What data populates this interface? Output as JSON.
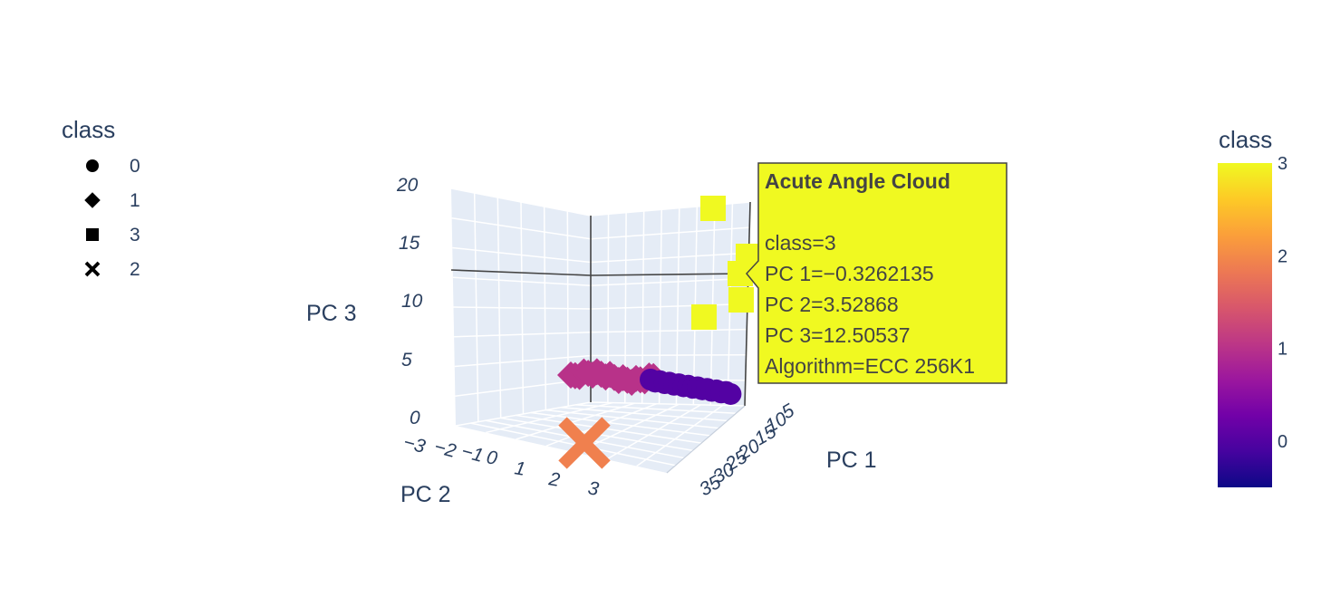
{
  "chart_data": {
    "type": "scatter3d",
    "legend": {
      "title": "class",
      "entries": [
        {
          "label": "0",
          "symbol": "circle"
        },
        {
          "label": "1",
          "symbol": "diamond"
        },
        {
          "label": "3",
          "symbol": "square"
        },
        {
          "label": "2",
          "symbol": "x"
        }
      ]
    },
    "axes": {
      "x": {
        "title": "PC 1",
        "ticks": [
          "5",
          "10",
          "15",
          "20",
          "25",
          "30",
          "35"
        ]
      },
      "y": {
        "title": "PC 2",
        "ticks": [
          "-3",
          "-2",
          "-1",
          "0",
          "1",
          "2",
          "3"
        ]
      },
      "z": {
        "title": "PC 3",
        "ticks": [
          "0",
          "5",
          "10",
          "15",
          "20"
        ],
        "range": [
          0,
          20
        ]
      }
    },
    "colorbar": {
      "title": "class",
      "range": [
        0,
        3
      ],
      "ticks": [
        "0",
        "1",
        "2",
        "3"
      ],
      "colorscale": [
        "#0d0887",
        "#46039f",
        "#7201a8",
        "#9c179e",
        "#bd3786",
        "#d8576b",
        "#ed7953",
        "#fb9f3a",
        "#fdca26",
        "#f0f921"
      ]
    },
    "series": [
      {
        "name": "0",
        "symbol": "circle",
        "color": "#5302a3",
        "points_drawn": 18
      },
      {
        "name": "1",
        "symbol": "diamond",
        "color": "#b83289",
        "points_drawn": 20
      },
      {
        "name": "3",
        "symbol": "square",
        "color": "#f0f921",
        "points_drawn": 5
      },
      {
        "name": "2",
        "symbol": "x",
        "color": "#f0804e",
        "points_drawn": 1
      }
    ],
    "hover": {
      "title": "Acute Angle Cloud",
      "lines": [
        "class=3",
        "PC 1=−0.3262135",
        "PC 2=3.52868",
        "PC 3=12.50537",
        "Algorithm=ECC 256K1"
      ],
      "background": "#f0f921"
    }
  }
}
